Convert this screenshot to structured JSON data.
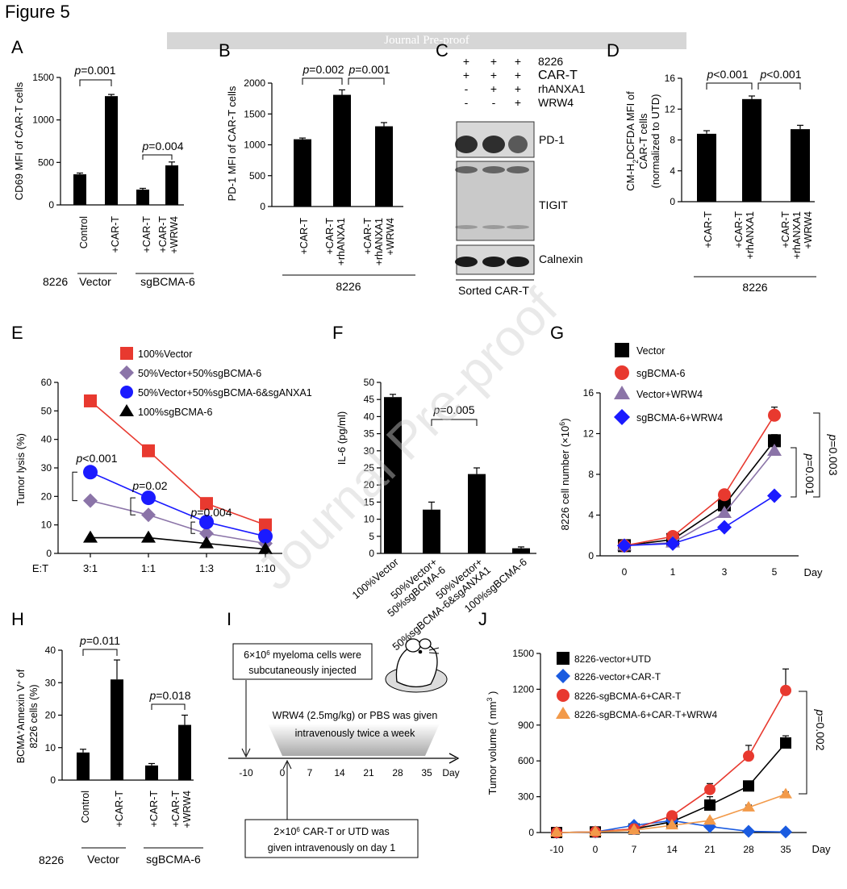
{
  "figure_title": "Figure 5",
  "banner": "Journal Pre-proof",
  "watermark": "Journal Pre-proof",
  "panels": {
    "A": {
      "letter": "A",
      "ylabel": "CD69 MFI of CAR-T cells",
      "yticks": [
        "0",
        "500",
        "1000",
        "1500"
      ],
      "cell_line": "8226",
      "groups": [
        "Vector",
        "sgBCMA-6"
      ],
      "pvals": [
        "0.001",
        "0.004"
      ],
      "categories": [
        "Control",
        "+CAR-T",
        "+CAR-T",
        "+CAR-T\n+WRW4"
      ]
    },
    "B": {
      "letter": "B",
      "ylabel": "PD-1 MFI of CAR-T cells",
      "yticks": [
        "0",
        "500",
        "1000",
        "1500",
        "2000"
      ],
      "group": "8226",
      "pvals": [
        "0.002",
        "0.001"
      ],
      "categories": [
        "+CAR-T",
        "+CAR-T\n+rhANXA1",
        "+CAR-T\n+rhANXA1\n+WRW4"
      ]
    },
    "C": {
      "letter": "C",
      "conditions": [
        {
          "name": "8226",
          "marks": [
            "+",
            "+",
            "+"
          ]
        },
        {
          "name": "CAR-T",
          "marks": [
            "+",
            "+",
            "+"
          ]
        },
        {
          "name": "rhANXA1",
          "marks": [
            "-",
            "+",
            "+"
          ]
        },
        {
          "name": "WRW4",
          "marks": [
            "-",
            "-",
            "+"
          ]
        }
      ],
      "blots": [
        "PD-1",
        "TIGIT",
        "Calnexin"
      ],
      "footer": "Sorted CAR-T"
    },
    "D": {
      "letter": "D",
      "ylabel_lines": [
        "CM-H",
        "2",
        "DCFDA MFI of",
        "CAR-T cells",
        "(normalized to UTD)"
      ],
      "yticks": [
        "0",
        "4",
        "8",
        "12",
        "16"
      ],
      "group": "8226",
      "pvals": [
        "<0.001",
        "<0.001"
      ],
      "categories": [
        "+CAR-T",
        "+CAR-T\n+rhANXA1",
        "+CAR-T\n+rhANXA1\n+WRW4"
      ]
    },
    "E": {
      "letter": "E",
      "ylabel": "Tumor lysis (%)",
      "yticks": [
        "0",
        "10",
        "20",
        "30",
        "40",
        "50",
        "60"
      ],
      "xprefix": "E:T",
      "pvals": [
        "<0.001",
        "0.02",
        "0.004"
      ]
    },
    "F": {
      "letter": "F",
      "ylabel": "IL-6 (pg/ml)",
      "yticks": [
        "0",
        "5",
        "10",
        "15",
        "20",
        "25",
        "30",
        "35",
        "40",
        "45",
        "50"
      ],
      "pval": "0.005"
    },
    "G": {
      "letter": "G",
      "ylabel": "8226 cell number (×10",
      "ylabel_exp": "6",
      "yticks": [
        "0",
        "4",
        "8",
        "12",
        "16"
      ],
      "xunit": "Day",
      "pvals": [
        "0.003",
        "0.001"
      ]
    },
    "H": {
      "letter": "H",
      "ylabel_lines": [
        "BCMA",
        "+",
        "Annexin V",
        "+",
        " of",
        "8226 cells (%)"
      ],
      "yticks": [
        "0",
        "10",
        "20",
        "30",
        "40"
      ],
      "cell_line": "8226",
      "groups": [
        "Vector",
        "sgBCMA-6"
      ],
      "pvals": [
        "0.011",
        "0.018"
      ],
      "categories": [
        "Control",
        "+CAR-T",
        "+CAR-T",
        "+CAR-T\n+WRW4"
      ]
    },
    "I": {
      "letter": "I",
      "box1_line1_pre": "6×10",
      "box1_line1_exp": "6",
      "box1_line1_post": " myeloma cells were",
      "box1_line2": "subcutaneously injected",
      "treat_line1": "WRW4 (2.5mg/kg) or PBS was given",
      "treat_line2": "intravenously twice a week",
      "box2_line1_pre": "2×10",
      "box2_line1_exp": "6",
      "box2_line1_post": " CAR-T or UTD was",
      "box2_line2": "given intravenously on day 1",
      "timeline": [
        "-10",
        "0",
        "7",
        "14",
        "21",
        "28",
        "35"
      ],
      "xunit": "Day"
    },
    "J": {
      "letter": "J",
      "ylabel": "Tumor volume ( mm",
      "ylabel_exp": "3",
      "yticks": [
        "0",
        "300",
        "600",
        "900",
        "1200",
        "1500"
      ],
      "xunit": "Day",
      "pval": "0.002"
    }
  },
  "chart_data": [
    {
      "panel": "A",
      "type": "bar",
      "ylabel": "CD69 MFI of CAR-T cells",
      "ylim": [
        0,
        1500
      ],
      "categories": [
        "Control",
        "+CAR-T",
        "+CAR-T",
        "+CAR-T +WRW4"
      ],
      "values": [
        360,
        1280,
        180,
        465
      ],
      "errors": [
        15,
        20,
        15,
        40
      ]
    },
    {
      "panel": "B",
      "type": "bar",
      "ylabel": "PD-1 MFI of CAR-T cells",
      "ylim": [
        0,
        2000
      ],
      "categories": [
        "+CAR-T",
        "+CAR-T +rhANXA1",
        "+CAR-T +rhANXA1 +WRW4"
      ],
      "values": [
        1090,
        1810,
        1300
      ],
      "errors": [
        20,
        80,
        60
      ]
    },
    {
      "panel": "D",
      "type": "bar",
      "ylabel": "CM-H2DCFDA MFI of CAR-T cells (normalized to UTD)",
      "ylim": [
        0,
        16
      ],
      "categories": [
        "+CAR-T",
        "+CAR-T +rhANXA1",
        "+CAR-T +rhANXA1 +WRW4"
      ],
      "values": [
        8.8,
        13.3,
        9.4
      ],
      "errors": [
        0.4,
        0.4,
        0.5
      ]
    },
    {
      "panel": "E",
      "type": "line",
      "ylabel": "Tumor lysis (%)",
      "ylim": [
        0,
        60
      ],
      "x": [
        "3:1",
        "1:1",
        "1:3",
        "1:10"
      ],
      "series": [
        {
          "name": "100%Vector",
          "color": "#e8392f",
          "marker": "square",
          "values": [
            53.5,
            36,
            17.5,
            10
          ]
        },
        {
          "name": "50%Vector+50%sgBCMA-6",
          "color": "#8b74a8",
          "marker": "diamond",
          "values": [
            18.5,
            13.5,
            7,
            3.5
          ]
        },
        {
          "name": "50%Vector+50%sgBCMA-6&sgANXA1",
          "color": "#1a1aff",
          "marker": "circle",
          "values": [
            28.5,
            19.5,
            11,
            6
          ]
        },
        {
          "name": "100%sgBCMA-6",
          "color": "#000000",
          "marker": "triangle",
          "values": [
            5.5,
            5.5,
            3.5,
            1.5
          ]
        }
      ]
    },
    {
      "panel": "F",
      "type": "bar",
      "ylabel": "IL-6 (pg/ml)",
      "ylim": [
        0,
        50
      ],
      "categories": [
        "100%Vector",
        "50%Vector+ 50%sgBCMA-6",
        "50%Vector+ 50%sgBCMA-6&sgANXA1",
        "100%sgBCMA-6"
      ],
      "values": [
        45.7,
        12.8,
        23.2,
        1.5
      ],
      "errors": [
        0.8,
        2.2,
        1.8,
        0.4
      ]
    },
    {
      "panel": "G",
      "type": "line",
      "ylabel": "8226 cell number (×10^6)",
      "ylim": [
        0,
        16
      ],
      "xlabel": "Day",
      "x": [
        "0",
        "1",
        "3",
        "5"
      ],
      "series": [
        {
          "name": "Vector",
          "color": "#000000",
          "marker": "square",
          "values": [
            1,
            1.6,
            5,
            11.3
          ]
        },
        {
          "name": "sgBCMA-6",
          "color": "#e8392f",
          "marker": "circle",
          "values": [
            1,
            1.9,
            6,
            13.8
          ]
        },
        {
          "name": "Vector+WRW4",
          "color": "#8b74a8",
          "marker": "triangle",
          "values": [
            1,
            1.3,
            4.2,
            10.3
          ]
        },
        {
          "name": "sgBCMA-6+WRW4",
          "color": "#1a1aff",
          "marker": "diamond",
          "values": [
            1,
            1.2,
            2.8,
            5.9
          ]
        }
      ]
    },
    {
      "panel": "H",
      "type": "bar",
      "ylabel": "BCMA+Annexin V+ of 8226 cells (%)",
      "ylim": [
        0,
        40
      ],
      "categories": [
        "Control",
        "+CAR-T",
        "+CAR-T",
        "+CAR-T +WRW4"
      ],
      "values": [
        8.5,
        31,
        4.5,
        17
      ],
      "errors": [
        1,
        6,
        0.6,
        3
      ]
    },
    {
      "panel": "J",
      "type": "line",
      "ylabel": "Tumor volume (mm3)",
      "ylim": [
        0,
        1500
      ],
      "xlabel": "Day",
      "x": [
        "-10",
        "0",
        "7",
        "14",
        "21",
        "28",
        "35"
      ],
      "series": [
        {
          "name": "8226-vector+UTD",
          "color": "#000000",
          "marker": "square",
          "values": [
            0,
            5,
            30,
            90,
            230,
            390,
            750
          ]
        },
        {
          "name": "8226-vector+CAR-T",
          "color": "#1a5be0",
          "marker": "diamond",
          "values": [
            0,
            5,
            60,
            100,
            50,
            10,
            5
          ]
        },
        {
          "name": "8226-sgBCMA-6+CAR-T",
          "color": "#e8392f",
          "marker": "circle",
          "values": [
            0,
            5,
            30,
            140,
            360,
            640,
            1190
          ]
        },
        {
          "name": "8226-sgBCMA-6+CAR-T+WRW4",
          "color": "#f29a4a",
          "marker": "triangle",
          "values": [
            0,
            5,
            20,
            60,
            100,
            210,
            320
          ]
        }
      ],
      "errors": [
        [
          0,
          0,
          5,
          10,
          70,
          40,
          60
        ],
        [
          0,
          0,
          0,
          0,
          0,
          0,
          0
        ],
        [
          0,
          0,
          5,
          20,
          50,
          90,
          180
        ],
        [
          0,
          0,
          0,
          5,
          10,
          20,
          20
        ]
      ]
    }
  ]
}
